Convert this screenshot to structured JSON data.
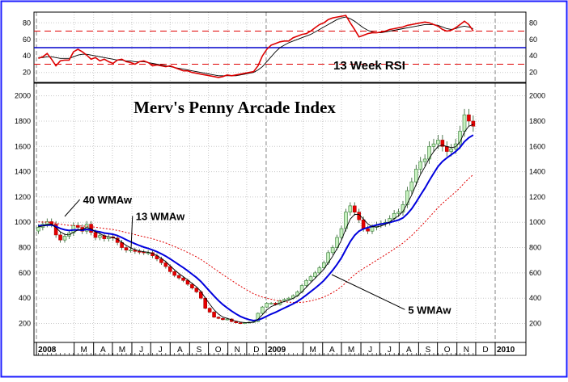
{
  "chart_data": {
    "type": "candlestick",
    "title": "Merv's Penny Arcade Index",
    "date_range": [
      "2007-12-28",
      "2010-02-19"
    ],
    "x_ticks": [
      {
        "label": "2008",
        "date": "2008-01-01",
        "year": true
      },
      {
        "label": "M",
        "date": "2008-03-01"
      },
      {
        "label": "A",
        "date": "2008-04-01"
      },
      {
        "label": "M",
        "date": "2008-05-01"
      },
      {
        "label": "J",
        "date": "2008-06-01"
      },
      {
        "label": "J",
        "date": "2008-07-01"
      },
      {
        "label": "A",
        "date": "2008-08-01"
      },
      {
        "label": "S",
        "date": "2008-09-01"
      },
      {
        "label": "O",
        "date": "2008-10-01"
      },
      {
        "label": "N",
        "date": "2008-11-01"
      },
      {
        "label": "D",
        "date": "2008-12-01"
      },
      {
        "label": "2009",
        "date": "2009-01-01",
        "year": true
      },
      {
        "label": "M",
        "date": "2009-03-01"
      },
      {
        "label": "A",
        "date": "2009-04-01"
      },
      {
        "label": "M",
        "date": "2009-05-01"
      },
      {
        "label": "J",
        "date": "2009-06-01"
      },
      {
        "label": "J",
        "date": "2009-07-01"
      },
      {
        "label": "A",
        "date": "2009-08-01"
      },
      {
        "label": "S",
        "date": "2009-09-01"
      },
      {
        "label": "O",
        "date": "2009-10-01"
      },
      {
        "label": "N",
        "date": "2009-11-01"
      },
      {
        "label": "D",
        "date": "2009-12-01"
      },
      {
        "label": "2010",
        "date": "2010-01-01",
        "year": true
      }
    ],
    "price_panel": {
      "ylim": [
        50,
        2100
      ],
      "y_ticks": [
        200,
        400,
        600,
        800,
        1000,
        1200,
        1400,
        1600,
        1800,
        2000
      ],
      "closes": [
        960,
        985,
        1005,
        985,
        900,
        860,
        890,
        915,
        975,
        960,
        930,
        985,
        920,
        880,
        895,
        870,
        885,
        875,
        840,
        800,
        780,
        780,
        770,
        765,
        760,
        760,
        735,
        710,
        680,
        650,
        610,
        580,
        560,
        540,
        510,
        480,
        450,
        400,
        320,
        290,
        250,
        240,
        230,
        235,
        215,
        205,
        200,
        205,
        210,
        215,
        280,
        330,
        360,
        360,
        350,
        380,
        390,
        400,
        420,
        450,
        500,
        540,
        570,
        600,
        640,
        680,
        760,
        800,
        880,
        950,
        1080,
        1130,
        1080,
        1020,
        950,
        930,
        960,
        980,
        990,
        1000,
        1030,
        1070,
        1080,
        1140,
        1250,
        1320,
        1420,
        1480,
        1500,
        1600,
        1620,
        1650,
        1600,
        1560,
        1580,
        1620,
        1720,
        1850,
        1800,
        1760
      ],
      "series": [
        {
          "name": "5 WMAw",
          "color": "#000000",
          "period": 5
        },
        {
          "name": "13 WMAw",
          "color": "#0000dd",
          "period": 13
        },
        {
          "name": "40 WMAw",
          "color": "#e00000",
          "period": 40
        }
      ],
      "annotations": [
        {
          "text": "40 WMAw",
          "date": "2008-03-10",
          "value": 1180
        },
        {
          "text": "13 WMAw",
          "date": "2008-06-02",
          "value": 1050
        },
        {
          "text": "5 WMAw",
          "date": "2009-08-10",
          "value": 310
        }
      ]
    },
    "rsi_panel": {
      "label": "13 Week RSI",
      "ylim": [
        8,
        93
      ],
      "y_ticks": [
        20,
        40,
        60,
        80
      ],
      "overbought": 70,
      "oversold": 30,
      "midline": 50,
      "series": [
        {
          "name": "RSI",
          "color": "#dd0000",
          "values": [
            37,
            39,
            43,
            36,
            28,
            34,
            35,
            35,
            45,
            48,
            45,
            41,
            36,
            38,
            34,
            36,
            33,
            31,
            35,
            36,
            33,
            32,
            30,
            33,
            34,
            32,
            28,
            29,
            28,
            27,
            28,
            26,
            24,
            22,
            22,
            20,
            19,
            18,
            17,
            16,
            15,
            14,
            15,
            17,
            16,
            17,
            18,
            19,
            20,
            21,
            28,
            40,
            48,
            53,
            55,
            57,
            58,
            58,
            62,
            64,
            66,
            67,
            70,
            74,
            78,
            80,
            84,
            86,
            87,
            88,
            89,
            80,
            72,
            63,
            65,
            67,
            68,
            68,
            69,
            70,
            72,
            73,
            74,
            75,
            77,
            78,
            79,
            80,
            81,
            80,
            78,
            76,
            72,
            70,
            71,
            74,
            78,
            82,
            78,
            70
          ]
        },
        {
          "name": "",
          "color": "#000000",
          "values": [
            38,
            38,
            39,
            39,
            38,
            37,
            37,
            37,
            39,
            41,
            42,
            42,
            41,
            40,
            39,
            38,
            37,
            36,
            35,
            35,
            34,
            34,
            33,
            33,
            33,
            32,
            31,
            30,
            29,
            28,
            27,
            26,
            25,
            24,
            23,
            22,
            21,
            20,
            19,
            18,
            17,
            16,
            16,
            16,
            16,
            16,
            17,
            18,
            19,
            20,
            23,
            27,
            33,
            39,
            45,
            50,
            53,
            56,
            58,
            60,
            62,
            64,
            66,
            69,
            72,
            75,
            78,
            81,
            84,
            86,
            87,
            85,
            82,
            78,
            74,
            71,
            69,
            68,
            68,
            69,
            70,
            71,
            72,
            73,
            74,
            75,
            76,
            77,
            78,
            78,
            78,
            77,
            75,
            73,
            72,
            73,
            75,
            76,
            75,
            73
          ]
        }
      ]
    }
  }
}
